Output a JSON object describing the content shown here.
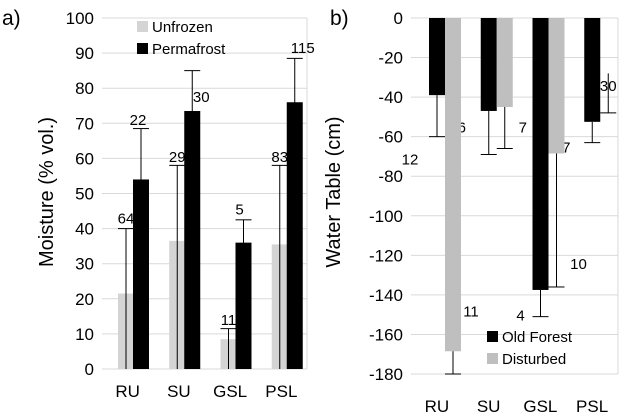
{
  "chart_data": [
    {
      "type": "bar",
      "panel_label": "a)",
      "ylabel": "Moisture (% vol.)",
      "xlabel": "",
      "categories": [
        "RU",
        "SU",
        "GSL",
        "PSL"
      ],
      "ylim": [
        0,
        100
      ],
      "yticks": [
        0,
        10,
        20,
        30,
        40,
        50,
        60,
        70,
        80,
        90,
        100
      ],
      "grid": true,
      "legend_position": "top-center",
      "series": [
        {
          "name": "Unfrozen",
          "color": "#d4d4d4",
          "values": [
            21.5,
            36.5,
            8.5,
            35.5
          ],
          "error_upper": [
            40,
            58,
            11.5,
            58
          ],
          "error_lower": [
            0,
            0,
            0,
            0
          ],
          "data_labels": [
            "64",
            "29",
            "11",
            "83"
          ]
        },
        {
          "name": "Permafrost",
          "color": "#000000",
          "values": [
            54,
            73.5,
            36,
            76
          ],
          "error_upper": [
            68.5,
            85,
            42.5,
            88.5
          ],
          "error_lower": [
            0,
            0,
            0,
            0
          ],
          "data_labels": [
            "22",
            "30",
            "5",
            "115"
          ]
        }
      ]
    },
    {
      "type": "bar",
      "panel_label": "b)",
      "ylabel": "Water Table (cm)",
      "xlabel": "",
      "categories": [
        "RU",
        "SU",
        "GSL",
        "PSL"
      ],
      "ylim": [
        -180,
        0
      ],
      "yticks": [
        0,
        -20,
        -40,
        -60,
        -80,
        -100,
        -120,
        -140,
        -160,
        -180
      ],
      "grid": true,
      "legend_position": "bottom-right",
      "series": [
        {
          "name": "Old Forest",
          "color": "#000000",
          "values": [
            -39,
            -47,
            -137.5,
            -52.5
          ],
          "error_upper": [
            -39,
            -47,
            -137.5,
            -52.5
          ],
          "error_lower": [
            -60,
            -69,
            -151,
            -63
          ],
          "data_labels": [
            "12",
            "6",
            "4",
            "7"
          ]
        },
        {
          "name": "Disturbed",
          "color": "#bfbfbf",
          "values": [
            -168.5,
            -45,
            -68.5,
            null
          ],
          "error_upper": [
            -168.5,
            -45,
            -68.5,
            -28
          ],
          "error_lower": [
            -180,
            -66,
            -136,
            -48
          ],
          "data_labels": [
            "11",
            "7",
            "10",
            "30"
          ]
        }
      ]
    }
  ]
}
